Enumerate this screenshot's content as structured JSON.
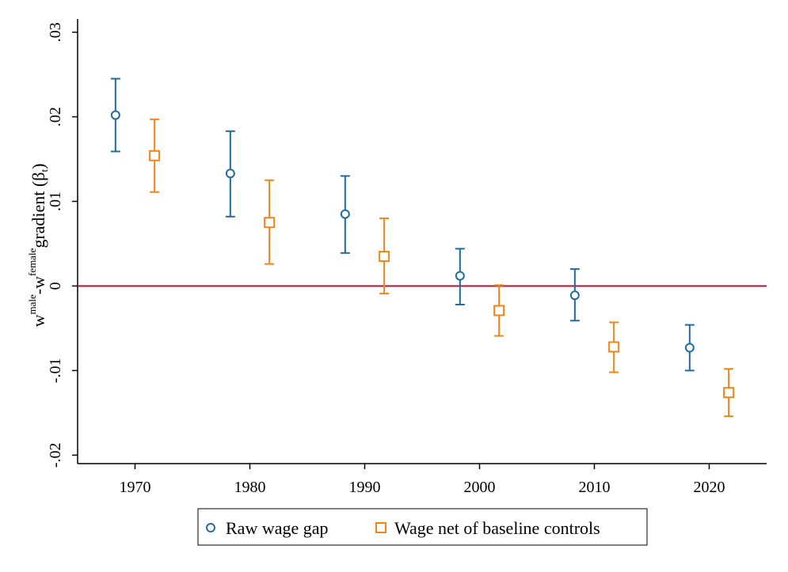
{
  "chart_data": {
    "type": "scatter",
    "ylabel": {
      "w1": "w",
      "sup1": "male",
      "dash": "-w",
      "sup2": "female",
      "rest": "gradient (β",
      "sub": "t",
      "close": ")"
    },
    "xlim": [
      1965,
      2025
    ],
    "ylim": [
      -0.021,
      0.031
    ],
    "xticks": [
      1970,
      1980,
      1990,
      2000,
      2010,
      2020
    ],
    "yticks": [
      {
        "value": -0.02,
        "label": "-.02"
      },
      {
        "value": -0.01,
        "label": "-.01"
      },
      {
        "value": 0,
        "label": "0"
      },
      {
        "value": 0.01,
        "label": ".01"
      },
      {
        "value": 0.02,
        "label": ".02"
      },
      {
        "value": 0.03,
        "label": ".03"
      }
    ],
    "reference_line": {
      "y": 0,
      "color": "#b8102f"
    },
    "grid": false,
    "legend_position": "bottom",
    "series": [
      {
        "name": "Raw wage gap",
        "marker": "circle",
        "color": "#1f6ca3",
        "points": [
          {
            "x": 1968.3,
            "y": 0.0202,
            "lo": 0.0159,
            "hi": 0.0245
          },
          {
            "x": 1978.3,
            "y": 0.0133,
            "lo": 0.0082,
            "hi": 0.0183
          },
          {
            "x": 1988.3,
            "y": 0.0085,
            "lo": 0.0039,
            "hi": 0.013
          },
          {
            "x": 1998.3,
            "y": 0.0012,
            "lo": -0.0022,
            "hi": 0.0044
          },
          {
            "x": 2008.3,
            "y": -0.0011,
            "lo": -0.0041,
            "hi": 0.002
          },
          {
            "x": 2018.3,
            "y": -0.0073,
            "lo": -0.01,
            "hi": -0.0046
          }
        ]
      },
      {
        "name": "Wage net of baseline controls",
        "marker": "square",
        "color": "#f28519",
        "points": [
          {
            "x": 1971.7,
            "y": 0.0154,
            "lo": 0.0111,
            "hi": 0.0197
          },
          {
            "x": 1981.7,
            "y": 0.0075,
            "lo": 0.0026,
            "hi": 0.0125
          },
          {
            "x": 1991.7,
            "y": 0.0035,
            "lo": -0.0009,
            "hi": 0.008
          },
          {
            "x": 2001.7,
            "y": -0.0029,
            "lo": -0.0059,
            "hi": 0.0001
          },
          {
            "x": 2011.7,
            "y": -0.0072,
            "lo": -0.0102,
            "hi": -0.0043
          },
          {
            "x": 2021.7,
            "y": -0.0126,
            "lo": -0.0154,
            "hi": -0.0098
          }
        ]
      }
    ]
  }
}
